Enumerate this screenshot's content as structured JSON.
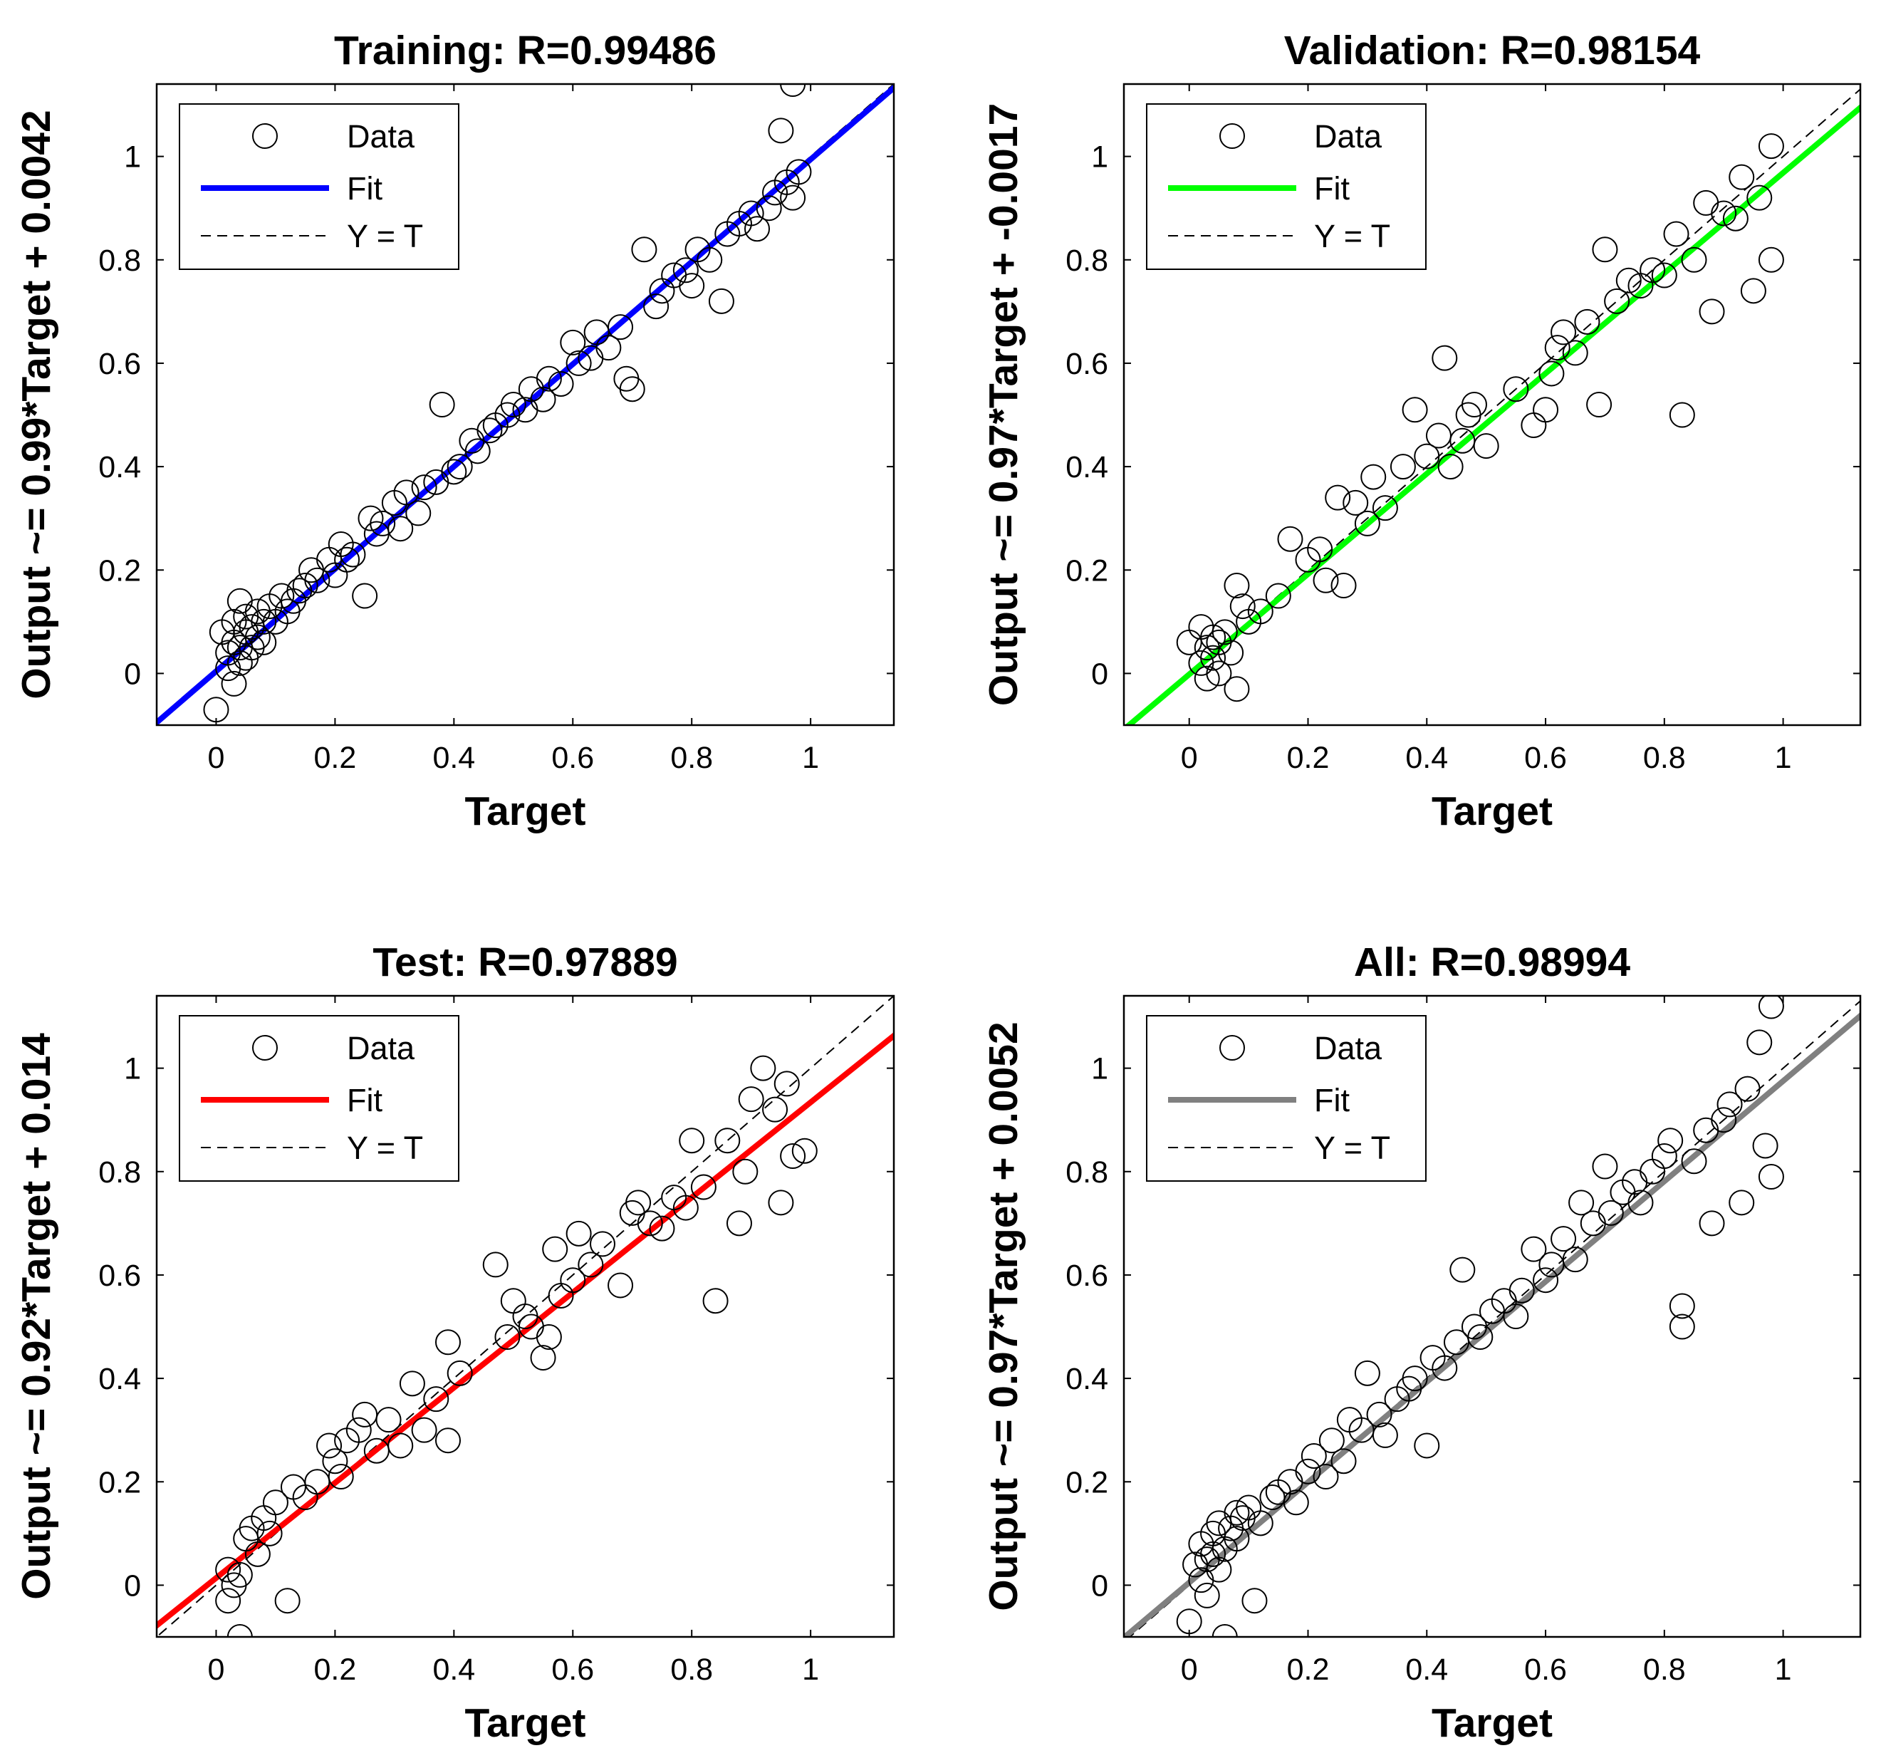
{
  "figure": {
    "background": "#ffffff"
  },
  "chart_data": [
    {
      "type": "scatter",
      "title": "Training: R=0.99486",
      "xlabel": "Target",
      "ylabel": "Output ~= 0.99*Target + 0.0042",
      "xlim": [
        -0.1,
        1.14
      ],
      "ylim": [
        -0.1,
        1.14
      ],
      "xticks": [
        0,
        0.2,
        0.4,
        0.6,
        0.8,
        1
      ],
      "yticks": [
        0,
        0.2,
        0.4,
        0.6,
        0.8,
        1
      ],
      "xtick_labels": [
        "0",
        "0.2",
        "0.4",
        "0.6",
        "0.8",
        "1"
      ],
      "ytick_labels": [
        "0",
        "0.2",
        "0.4",
        "0.6",
        "0.8",
        "1"
      ],
      "fit": {
        "slope": 0.99,
        "intercept": 0.0042,
        "color": "#0000ff"
      },
      "legend": {
        "position": "top-left",
        "entries": [
          "Data",
          "Fit",
          "Y = T"
        ]
      },
      "points": {
        "x": [
          0.0,
          0.01,
          0.02,
          0.02,
          0.03,
          0.03,
          0.03,
          0.04,
          0.04,
          0.04,
          0.05,
          0.05,
          0.05,
          0.06,
          0.06,
          0.07,
          0.07,
          0.08,
          0.08,
          0.09,
          0.1,
          0.11,
          0.12,
          0.13,
          0.14,
          0.15,
          0.16,
          0.17,
          0.19,
          0.2,
          0.21,
          0.22,
          0.23,
          0.25,
          0.26,
          0.27,
          0.28,
          0.3,
          0.31,
          0.32,
          0.34,
          0.35,
          0.37,
          0.38,
          0.4,
          0.41,
          0.43,
          0.44,
          0.46,
          0.47,
          0.49,
          0.5,
          0.52,
          0.53,
          0.55,
          0.56,
          0.58,
          0.6,
          0.61,
          0.63,
          0.64,
          0.66,
          0.68,
          0.69,
          0.7,
          0.72,
          0.74,
          0.75,
          0.77,
          0.79,
          0.8,
          0.81,
          0.83,
          0.85,
          0.86,
          0.88,
          0.9,
          0.91,
          0.93,
          0.94,
          0.95,
          0.96,
          0.97,
          0.97,
          0.98
        ],
        "y": [
          -0.07,
          0.08,
          0.01,
          0.04,
          -0.02,
          0.06,
          0.1,
          0.02,
          0.05,
          0.14,
          0.03,
          0.08,
          0.11,
          0.05,
          0.09,
          0.07,
          0.12,
          0.1,
          0.06,
          0.13,
          0.1,
          0.15,
          0.12,
          0.14,
          0.16,
          0.17,
          0.2,
          0.18,
          0.22,
          0.19,
          0.25,
          0.22,
          0.23,
          0.15,
          0.3,
          0.27,
          0.29,
          0.33,
          0.28,
          0.35,
          0.31,
          0.36,
          0.37,
          0.52,
          0.39,
          0.4,
          0.45,
          0.43,
          0.47,
          0.48,
          0.5,
          0.52,
          0.51,
          0.55,
          0.53,
          0.57,
          0.56,
          0.64,
          0.6,
          0.61,
          0.66,
          0.63,
          0.67,
          0.57,
          0.55,
          0.82,
          0.71,
          0.74,
          0.77,
          0.78,
          0.75,
          0.82,
          0.8,
          0.72,
          0.85,
          0.87,
          0.89,
          0.86,
          0.9,
          0.93,
          1.05,
          0.95,
          1.14,
          0.92,
          0.97
        ]
      }
    },
    {
      "type": "scatter",
      "title": "Validation: R=0.98154",
      "xlabel": "Target",
      "ylabel": "Output ~= 0.97*Target + -0.0017",
      "xlim": [
        -0.11,
        1.13
      ],
      "ylim": [
        -0.1,
        1.14
      ],
      "xticks": [
        0,
        0.2,
        0.4,
        0.6,
        0.8,
        1
      ],
      "yticks": [
        0,
        0.2,
        0.4,
        0.6,
        0.8,
        1
      ],
      "xtick_labels": [
        "0",
        "0.2",
        "0.4",
        "0.6",
        "0.8",
        "1"
      ],
      "ytick_labels": [
        "0",
        "0.2",
        "0.4",
        "0.6",
        "0.8",
        "1"
      ],
      "fit": {
        "slope": 0.97,
        "intercept": -0.0017,
        "color": "#00ff00"
      },
      "legend": {
        "position": "top-left",
        "entries": [
          "Data",
          "Fit",
          "Y = T"
        ]
      },
      "points": {
        "x": [
          0.0,
          0.02,
          0.02,
          0.03,
          0.03,
          0.04,
          0.04,
          0.05,
          0.05,
          0.06,
          0.07,
          0.08,
          0.08,
          0.09,
          0.1,
          0.12,
          0.15,
          0.17,
          0.2,
          0.22,
          0.23,
          0.25,
          0.26,
          0.28,
          0.3,
          0.31,
          0.33,
          0.36,
          0.38,
          0.4,
          0.42,
          0.43,
          0.44,
          0.46,
          0.47,
          0.48,
          0.5,
          0.55,
          0.58,
          0.6,
          0.61,
          0.62,
          0.63,
          0.65,
          0.67,
          0.69,
          0.7,
          0.72,
          0.74,
          0.76,
          0.78,
          0.8,
          0.82,
          0.83,
          0.85,
          0.87,
          0.88,
          0.9,
          0.92,
          0.93,
          0.95,
          0.96,
          0.98,
          0.98
        ],
        "y": [
          0.06,
          0.02,
          0.09,
          -0.01,
          0.05,
          0.03,
          0.07,
          0.0,
          0.06,
          0.08,
          0.04,
          0.17,
          -0.03,
          0.13,
          0.1,
          0.12,
          0.15,
          0.26,
          0.22,
          0.24,
          0.18,
          0.34,
          0.17,
          0.33,
          0.29,
          0.38,
          0.32,
          0.4,
          0.51,
          0.42,
          0.46,
          0.61,
          0.4,
          0.45,
          0.5,
          0.52,
          0.44,
          0.55,
          0.48,
          0.51,
          0.58,
          0.63,
          0.66,
          0.62,
          0.68,
          0.52,
          0.82,
          0.72,
          0.76,
          0.75,
          0.78,
          0.77,
          0.85,
          0.5,
          0.8,
          0.91,
          0.7,
          0.89,
          0.88,
          0.96,
          0.74,
          0.92,
          1.02,
          0.8
        ]
      }
    },
    {
      "type": "scatter",
      "title": "Test: R=0.97889",
      "xlabel": "Target",
      "ylabel": "Output ~= 0.92*Target + 0.014",
      "xlim": [
        -0.1,
        1.14
      ],
      "ylim": [
        -0.1,
        1.14
      ],
      "xticks": [
        0,
        0.2,
        0.4,
        0.6,
        0.8,
        1
      ],
      "yticks": [
        0,
        0.2,
        0.4,
        0.6,
        0.8,
        1
      ],
      "xtick_labels": [
        "0",
        "0.2",
        "0.4",
        "0.6",
        "0.8",
        "1"
      ],
      "ytick_labels": [
        "0",
        "0.2",
        "0.4",
        "0.6",
        "0.8",
        "1"
      ],
      "fit": {
        "slope": 0.92,
        "intercept": 0.014,
        "color": "#ff0000"
      },
      "legend": {
        "position": "top-left",
        "entries": [
          "Data",
          "Fit",
          "Y = T"
        ]
      },
      "points": {
        "x": [
          0.02,
          0.02,
          0.03,
          0.04,
          0.04,
          0.05,
          0.06,
          0.07,
          0.08,
          0.09,
          0.1,
          0.12,
          0.13,
          0.15,
          0.17,
          0.19,
          0.2,
          0.21,
          0.22,
          0.24,
          0.25,
          0.27,
          0.29,
          0.31,
          0.33,
          0.35,
          0.37,
          0.39,
          0.39,
          0.41,
          0.47,
          0.49,
          0.5,
          0.52,
          0.53,
          0.55,
          0.56,
          0.57,
          0.58,
          0.6,
          0.61,
          0.63,
          0.65,
          0.68,
          0.7,
          0.71,
          0.73,
          0.75,
          0.77,
          0.79,
          0.8,
          0.82,
          0.84,
          0.86,
          0.88,
          0.89,
          0.9,
          0.92,
          0.94,
          0.95,
          0.96,
          0.97,
          0.99
        ],
        "y": [
          0.03,
          -0.03,
          0.0,
          0.02,
          -0.1,
          0.09,
          0.11,
          0.06,
          0.13,
          0.1,
          0.16,
          -0.03,
          0.19,
          0.17,
          0.2,
          0.27,
          0.24,
          0.21,
          0.28,
          0.3,
          0.33,
          0.26,
          0.32,
          0.27,
          0.39,
          0.3,
          0.36,
          0.47,
          0.28,
          0.41,
          0.62,
          0.48,
          0.55,
          0.52,
          0.5,
          0.44,
          0.48,
          0.65,
          0.56,
          0.59,
          0.68,
          0.62,
          0.66,
          0.58,
          0.72,
          0.74,
          0.7,
          0.69,
          0.75,
          0.73,
          0.86,
          0.77,
          0.55,
          0.86,
          0.7,
          0.8,
          0.94,
          1.0,
          0.92,
          0.74,
          0.97,
          0.83,
          0.84
        ]
      }
    },
    {
      "type": "scatter",
      "title": "All: R=0.98994",
      "xlabel": "Target",
      "ylabel": "Output ~= 0.97*Target + 0.0052",
      "xlim": [
        -0.11,
        1.13
      ],
      "ylim": [
        -0.1,
        1.14
      ],
      "xticks": [
        0,
        0.2,
        0.4,
        0.6,
        0.8,
        1
      ],
      "yticks": [
        0,
        0.2,
        0.4,
        0.6,
        0.8,
        1
      ],
      "xtick_labels": [
        "0",
        "0.2",
        "0.4",
        "0.6",
        "0.8",
        "1"
      ],
      "ytick_labels": [
        "0",
        "0.2",
        "0.4",
        "0.6",
        "0.8",
        "1"
      ],
      "fit": {
        "slope": 0.97,
        "intercept": 0.0052,
        "color": "#808080"
      },
      "legend": {
        "position": "top-left",
        "entries": [
          "Data",
          "Fit",
          "Y = T"
        ]
      },
      "points": {
        "x": [
          0.0,
          0.01,
          0.02,
          0.02,
          0.03,
          0.03,
          0.04,
          0.04,
          0.05,
          0.05,
          0.06,
          0.06,
          0.07,
          0.08,
          0.08,
          0.09,
          0.1,
          0.11,
          0.12,
          0.14,
          0.15,
          0.17,
          0.18,
          0.2,
          0.21,
          0.23,
          0.24,
          0.26,
          0.27,
          0.29,
          0.3,
          0.32,
          0.33,
          0.35,
          0.37,
          0.38,
          0.4,
          0.41,
          0.43,
          0.45,
          0.46,
          0.48,
          0.49,
          0.51,
          0.53,
          0.55,
          0.56,
          0.58,
          0.6,
          0.61,
          0.63,
          0.65,
          0.66,
          0.68,
          0.7,
          0.71,
          0.73,
          0.75,
          0.76,
          0.78,
          0.8,
          0.81,
          0.83,
          0.83,
          0.85,
          0.87,
          0.88,
          0.9,
          0.91,
          0.93,
          0.94,
          0.96,
          0.97,
          0.98,
          0.98
        ],
        "y": [
          -0.07,
          0.04,
          0.08,
          0.01,
          0.05,
          -0.02,
          0.1,
          0.06,
          0.03,
          0.12,
          0.07,
          -0.1,
          0.11,
          0.09,
          0.14,
          0.13,
          0.15,
          -0.03,
          0.12,
          0.17,
          0.18,
          0.2,
          0.16,
          0.22,
          0.25,
          0.21,
          0.28,
          0.24,
          0.32,
          0.3,
          0.41,
          0.33,
          0.29,
          0.36,
          0.38,
          0.4,
          0.27,
          0.44,
          0.42,
          0.47,
          0.61,
          0.5,
          0.48,
          0.53,
          0.55,
          0.52,
          0.57,
          0.65,
          0.59,
          0.62,
          0.67,
          0.63,
          0.74,
          0.7,
          0.81,
          0.72,
          0.76,
          0.78,
          0.74,
          0.8,
          0.83,
          0.86,
          0.5,
          0.54,
          0.82,
          0.88,
          0.7,
          0.9,
          0.93,
          0.74,
          0.96,
          1.05,
          0.85,
          1.12,
          0.79
        ]
      }
    }
  ]
}
